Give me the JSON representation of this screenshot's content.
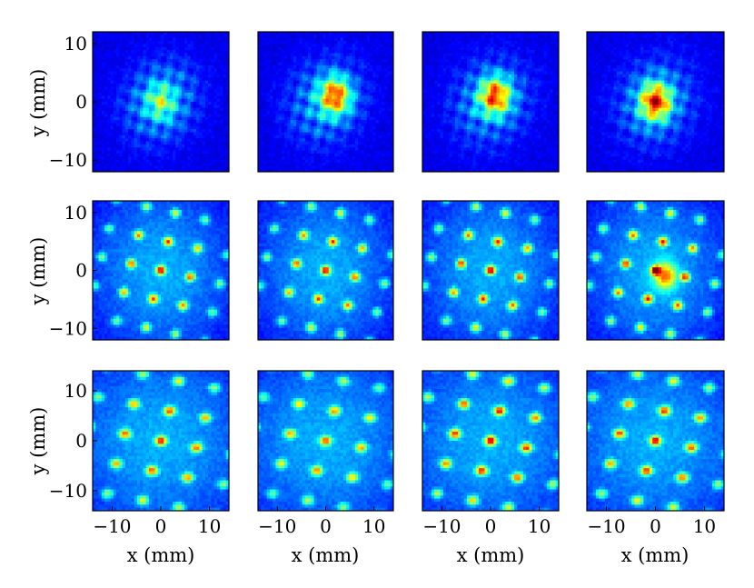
{
  "chart_data": {
    "type": "heatmap",
    "layout": {
      "rows": 3,
      "cols": 4
    },
    "colormap": "jet",
    "colors": {
      "low": "#00008f",
      "mid": "#7fff7f",
      "high": "#800000"
    },
    "xlabel": "x (mm)",
    "ylabel": "y (mm)",
    "axes": {
      "x": {
        "range": [
          -14,
          14
        ],
        "ticks": [
          -10,
          0,
          10
        ],
        "tick_labels": [
          "−10",
          "0",
          "10"
        ]
      },
      "y_rows": [
        {
          "range": [
            -12,
            12
          ],
          "ticks": [
            10,
            0,
            -10
          ],
          "tick_labels": [
            "10",
            "0",
            "−10"
          ]
        },
        {
          "range": [
            -12,
            12
          ],
          "ticks": [
            10,
            0,
            -10
          ],
          "tick_labels": [
            "10",
            "0",
            "−10"
          ]
        },
        {
          "range": [
            -14,
            14
          ],
          "ticks": [
            10,
            0,
            -10
          ],
          "tick_labels": [
            "10",
            "0",
            "−10"
          ]
        }
      ]
    },
    "panels": [
      {
        "row": 0,
        "col": 0,
        "pattern": "blob",
        "peak_x": 0,
        "peak_y": 0,
        "peak_value": 0.65
      },
      {
        "row": 0,
        "col": 1,
        "pattern": "blob",
        "peak_x": 2,
        "peak_y": 1,
        "peak_value": 0.95
      },
      {
        "row": 0,
        "col": 2,
        "pattern": "blob",
        "peak_x": 1,
        "peak_y": 1,
        "peak_value": 0.95
      },
      {
        "row": 0,
        "col": 3,
        "pattern": "blob",
        "peak_x": 0,
        "peak_y": 0,
        "peak_value": 1.0
      },
      {
        "row": 1,
        "col": 0,
        "pattern": "lattice",
        "peak_value": 0.85
      },
      {
        "row": 1,
        "col": 1,
        "pattern": "lattice",
        "peak_value": 0.85
      },
      {
        "row": 1,
        "col": 2,
        "pattern": "lattice",
        "peak_value": 0.9
      },
      {
        "row": 1,
        "col": 3,
        "pattern": "lattice",
        "peak_x": 2,
        "peak_y": -1,
        "peak_value": 0.95
      },
      {
        "row": 2,
        "col": 0,
        "pattern": "lattice",
        "peak_value": 0.8
      },
      {
        "row": 2,
        "col": 1,
        "pattern": "lattice",
        "peak_value": 0.7
      },
      {
        "row": 2,
        "col": 2,
        "pattern": "lattice",
        "peak_value": 0.9
      },
      {
        "row": 2,
        "col": 3,
        "pattern": "lattice",
        "peak_value": 0.85
      }
    ]
  }
}
